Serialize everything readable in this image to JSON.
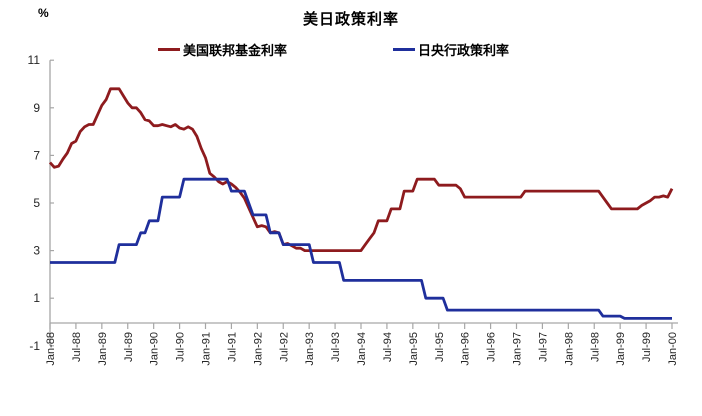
{
  "title": "美日政策利率",
  "unit_label": "%",
  "legend": [
    {
      "label": "美国联邦基金利率",
      "color": "#8e1b1e"
    },
    {
      "label": "日央行政策利率",
      "color": "#1f2f9c"
    }
  ],
  "chart_data": {
    "type": "line",
    "title": "美日政策利率",
    "ylabel": "%",
    "x_start": "Jan-88",
    "x_end": "Jan-00",
    "x_frequency": "monthly",
    "x_tick_labels": [
      "Jan-88",
      "Jul-88",
      "Jan-89",
      "Jul-89",
      "Jan-90",
      "Jul-90",
      "Jan-91",
      "Jul-91",
      "Jan-92",
      "Jul-92",
      "Jan-93",
      "Jul-93",
      "Jan-94",
      "Jul-94",
      "Jan-95",
      "Jul-95",
      "Jan-96",
      "Jul-96",
      "Jan-97",
      "Jul-97",
      "Jan-98",
      "Jul-98",
      "Jan-99",
      "Jul-99",
      "Jan-00"
    ],
    "ylim": [
      -1,
      11
    ],
    "yticks": [
      -1,
      1,
      3,
      5,
      7,
      9,
      11
    ],
    "grid": false,
    "legend_position": "top",
    "axis_color": "#a6a6a6",
    "tick_label_color": "#262626",
    "series": [
      {
        "name": "美国联邦基金利率",
        "color": "#8e1b1e",
        "values": [
          6.7,
          6.5,
          6.55,
          6.85,
          7.1,
          7.5,
          7.6,
          8.0,
          8.2,
          8.3,
          8.3,
          8.7,
          9.1,
          9.35,
          9.8,
          9.8,
          9.8,
          9.5,
          9.2,
          9.0,
          9.0,
          8.8,
          8.5,
          8.45,
          8.25,
          8.25,
          8.3,
          8.25,
          8.2,
          8.3,
          8.15,
          8.1,
          8.2,
          8.1,
          7.8,
          7.3,
          6.9,
          6.25,
          6.1,
          5.9,
          5.8,
          5.9,
          5.8,
          5.65,
          5.45,
          5.2,
          4.8,
          4.4,
          4.0,
          4.05,
          4.0,
          3.75,
          3.8,
          3.75,
          3.25,
          3.3,
          3.2,
          3.1,
          3.1,
          3.0,
          3.0,
          3.0,
          3.0,
          3.0,
          3.0,
          3.0,
          3.0,
          3.0,
          3.0,
          3.0,
          3.0,
          3.0,
          3.0,
          3.25,
          3.5,
          3.75,
          4.25,
          4.25,
          4.25,
          4.75,
          4.75,
          4.75,
          5.5,
          5.5,
          5.5,
          6.0,
          6.0,
          6.0,
          6.0,
          6.0,
          5.75,
          5.75,
          5.75,
          5.75,
          5.75,
          5.6,
          5.25,
          5.25,
          5.25,
          5.25,
          5.25,
          5.25,
          5.25,
          5.25,
          5.25,
          5.25,
          5.25,
          5.25,
          5.25,
          5.25,
          5.5,
          5.5,
          5.5,
          5.5,
          5.5,
          5.5,
          5.5,
          5.5,
          5.5,
          5.5,
          5.5,
          5.5,
          5.5,
          5.5,
          5.5,
          5.5,
          5.5,
          5.5,
          5.25,
          5.0,
          4.75,
          4.75,
          4.75,
          4.75,
          4.75,
          4.75,
          4.75,
          4.9,
          5.0,
          5.1,
          5.25,
          5.25,
          5.3,
          5.25,
          5.6
        ]
      },
      {
        "name": "日央行政策利率",
        "color": "#1f2f9c",
        "values": [
          2.5,
          2.5,
          2.5,
          2.5,
          2.5,
          2.5,
          2.5,
          2.5,
          2.5,
          2.5,
          2.5,
          2.5,
          2.5,
          2.5,
          2.5,
          2.5,
          3.25,
          3.25,
          3.25,
          3.25,
          3.25,
          3.75,
          3.75,
          4.25,
          4.25,
          4.25,
          5.25,
          5.25,
          5.25,
          5.25,
          5.25,
          6.0,
          6.0,
          6.0,
          6.0,
          6.0,
          6.0,
          6.0,
          6.0,
          6.0,
          6.0,
          6.0,
          5.5,
          5.5,
          5.5,
          5.5,
          5.0,
          4.5,
          4.5,
          4.5,
          4.5,
          3.75,
          3.75,
          3.75,
          3.25,
          3.25,
          3.25,
          3.25,
          3.25,
          3.25,
          3.25,
          2.5,
          2.5,
          2.5,
          2.5,
          2.5,
          2.5,
          2.5,
          1.75,
          1.75,
          1.75,
          1.75,
          1.75,
          1.75,
          1.75,
          1.75,
          1.75,
          1.75,
          1.75,
          1.75,
          1.75,
          1.75,
          1.75,
          1.75,
          1.75,
          1.75,
          1.75,
          1.0,
          1.0,
          1.0,
          1.0,
          1.0,
          0.5,
          0.5,
          0.5,
          0.5,
          0.5,
          0.5,
          0.5,
          0.5,
          0.5,
          0.5,
          0.5,
          0.5,
          0.5,
          0.5,
          0.5,
          0.5,
          0.5,
          0.5,
          0.5,
          0.5,
          0.5,
          0.5,
          0.5,
          0.5,
          0.5,
          0.5,
          0.5,
          0.5,
          0.5,
          0.5,
          0.5,
          0.5,
          0.5,
          0.5,
          0.5,
          0.5,
          0.25,
          0.25,
          0.25,
          0.25,
          0.25,
          0.15,
          0.15,
          0.15,
          0.15,
          0.15,
          0.15,
          0.15,
          0.15,
          0.15,
          0.15,
          0.15,
          0.15
        ]
      }
    ]
  }
}
